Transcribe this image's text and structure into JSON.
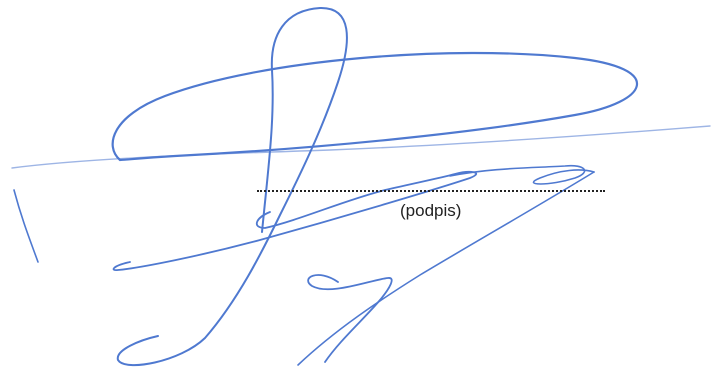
{
  "form": {
    "signature_caption": "(podpis)"
  },
  "signature": {
    "kind": "handwritten-signature",
    "ink_color": "#4f79d0"
  },
  "colors": {
    "background": "#ffffff",
    "line_and_caption": "#222222"
  }
}
